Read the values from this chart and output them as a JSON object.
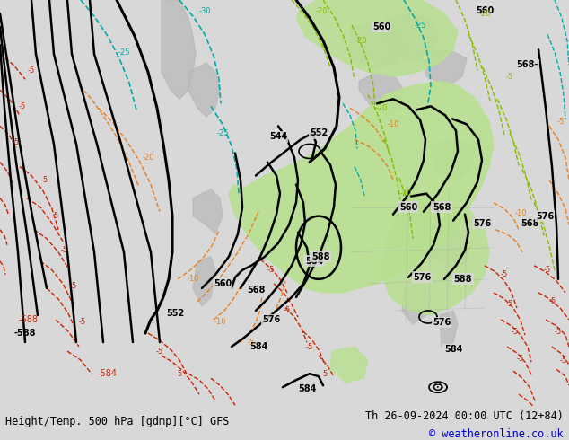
{
  "title_left": "Height/Temp. 500 hPa [gdmp][°C] GFS",
  "title_right": "Th 26-09-2024 00:00 UTC (12+84)",
  "copyright": "© weatheronline.co.uk",
  "bg_color": "#d8d8d8",
  "map_bg": "#d8d8d8",
  "bottom_bar_color": "#ffffff",
  "title_fontsize": 9,
  "copyright_color": "#0000cc",
  "title_color": "#000000",
  "orange": "#e88020",
  "red": "#cc2200",
  "cyan": "#00aaaa",
  "ygreen": "#88bb00",
  "black": "#000000",
  "green_fill": "#b8e090",
  "gray_land": "#b8b8b8",
  "light_gray": "#d0d0d0"
}
